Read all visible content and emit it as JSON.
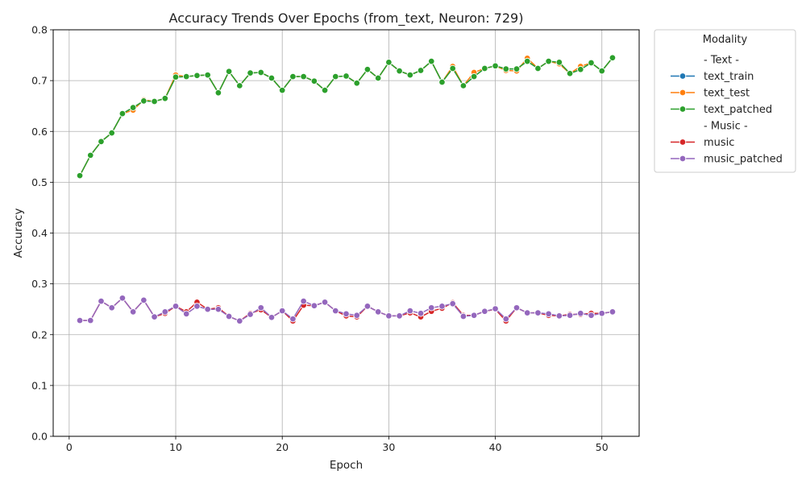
{
  "chart_data": {
    "type": "line",
    "title": "Accuracy Trends Over Epochs (from_text, Neuron: 729)",
    "xlabel": "Epoch",
    "ylabel": "Accuracy",
    "xlim": [
      -1.5,
      53.5
    ],
    "ylim": [
      0.0,
      0.8
    ],
    "xticks": [
      0,
      10,
      20,
      30,
      40,
      50
    ],
    "yticks": [
      0.0,
      0.1,
      0.2,
      0.3,
      0.4,
      0.5,
      0.6,
      0.7,
      0.8
    ],
    "grid": true,
    "legend": {
      "title": "Modality",
      "placement": "outside-right",
      "entries": [
        {
          "type": "header",
          "label": "- Text -"
        },
        {
          "type": "series",
          "label": "text_train",
          "color": "#1f77b4"
        },
        {
          "type": "series",
          "label": "text_test",
          "color": "#ff7f0e"
        },
        {
          "type": "series",
          "label": "text_patched",
          "color": "#2ca02c"
        },
        {
          "type": "header",
          "label": "- Music -"
        },
        {
          "type": "series",
          "label": "music",
          "color": "#d62728"
        },
        {
          "type": "series",
          "label": "music_patched",
          "color": "#9467bd"
        }
      ]
    },
    "x": [
      1,
      2,
      3,
      4,
      5,
      6,
      7,
      8,
      9,
      10,
      11,
      12,
      13,
      14,
      15,
      16,
      17,
      18,
      19,
      20,
      21,
      22,
      23,
      24,
      25,
      26,
      27,
      28,
      29,
      30,
      31,
      32,
      33,
      34,
      35,
      36,
      37,
      38,
      39,
      40,
      41,
      42,
      43,
      44,
      45,
      46,
      47,
      48,
      49,
      50,
      51
    ],
    "series": [
      {
        "name": "text_train",
        "color": "#1f77b4",
        "values": [
          0.513,
          0.553,
          0.58,
          0.597,
          0.635,
          0.647,
          0.66,
          0.659,
          0.665,
          0.707,
          0.708,
          0.71,
          0.711,
          0.676,
          0.718,
          0.69,
          0.715,
          0.716,
          0.705,
          0.681,
          0.708,
          0.708,
          0.699,
          0.681,
          0.708,
          0.709,
          0.695,
          0.722,
          0.705,
          0.736,
          0.719,
          0.711,
          0.72,
          0.738,
          0.697,
          0.724,
          0.69,
          0.708,
          0.724,
          0.729,
          0.723,
          0.723,
          0.738,
          0.724,
          0.738,
          0.736,
          0.714,
          0.722,
          0.735,
          0.719,
          0.745
        ]
      },
      {
        "name": "text_test",
        "color": "#ff7f0e",
        "values": [
          0.513,
          0.553,
          0.58,
          0.597,
          0.635,
          0.642,
          0.662,
          0.659,
          0.665,
          0.711,
          0.708,
          0.71,
          0.711,
          0.676,
          0.718,
          0.69,
          0.715,
          0.716,
          0.705,
          0.681,
          0.708,
          0.708,
          0.699,
          0.681,
          0.708,
          0.709,
          0.695,
          0.722,
          0.705,
          0.736,
          0.719,
          0.711,
          0.72,
          0.738,
          0.697,
          0.728,
          0.69,
          0.716,
          0.724,
          0.729,
          0.72,
          0.719,
          0.744,
          0.724,
          0.738,
          0.733,
          0.714,
          0.728,
          0.735,
          0.719,
          0.745
        ]
      },
      {
        "name": "text_patched",
        "color": "#2ca02c",
        "values": [
          0.513,
          0.553,
          0.58,
          0.597,
          0.635,
          0.647,
          0.66,
          0.659,
          0.665,
          0.707,
          0.708,
          0.71,
          0.711,
          0.676,
          0.718,
          0.69,
          0.715,
          0.716,
          0.705,
          0.681,
          0.708,
          0.708,
          0.699,
          0.681,
          0.708,
          0.709,
          0.695,
          0.722,
          0.705,
          0.736,
          0.719,
          0.711,
          0.72,
          0.738,
          0.697,
          0.724,
          0.69,
          0.708,
          0.724,
          0.729,
          0.723,
          0.723,
          0.738,
          0.724,
          0.738,
          0.736,
          0.714,
          0.722,
          0.735,
          0.719,
          0.745
        ]
      },
      {
        "name": "music",
        "color": "#d62728",
        "values": [
          0.228,
          0.228,
          0.266,
          0.253,
          0.272,
          0.245,
          0.268,
          0.235,
          0.242,
          0.256,
          0.245,
          0.264,
          0.25,
          0.253,
          0.236,
          0.227,
          0.242,
          0.249,
          0.234,
          0.247,
          0.227,
          0.258,
          0.257,
          0.264,
          0.247,
          0.237,
          0.235,
          0.256,
          0.245,
          0.237,
          0.237,
          0.243,
          0.235,
          0.246,
          0.252,
          0.263,
          0.238,
          0.238,
          0.246,
          0.25,
          0.227,
          0.253,
          0.243,
          0.243,
          0.238,
          0.237,
          0.24,
          0.24,
          0.242,
          0.242,
          0.245
        ]
      },
      {
        "name": "music_patched",
        "color": "#9467bd",
        "values": [
          0.228,
          0.228,
          0.266,
          0.253,
          0.272,
          0.245,
          0.268,
          0.235,
          0.245,
          0.256,
          0.241,
          0.256,
          0.25,
          0.25,
          0.236,
          0.227,
          0.24,
          0.253,
          0.234,
          0.247,
          0.231,
          0.266,
          0.257,
          0.264,
          0.247,
          0.241,
          0.238,
          0.256,
          0.245,
          0.237,
          0.237,
          0.247,
          0.242,
          0.253,
          0.256,
          0.261,
          0.236,
          0.238,
          0.246,
          0.251,
          0.231,
          0.253,
          0.243,
          0.243,
          0.241,
          0.237,
          0.238,
          0.242,
          0.238,
          0.242,
          0.245
        ]
      }
    ]
  }
}
